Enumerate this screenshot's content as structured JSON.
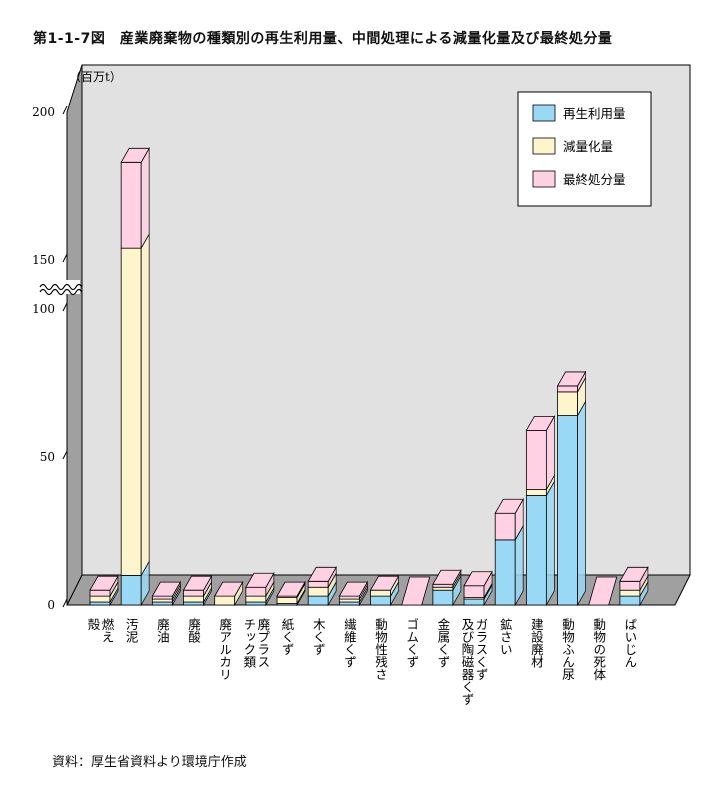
{
  "title": "第1-1-7図　産業廃棄物の種類別の再生利用量、中間処理による減量化量及び最終処分量",
  "source": "資料：厚生省資料より環境庁作成",
  "colors": {
    "recycle": "#99d9f5",
    "reduce": "#fff5cc",
    "final": "#ffd1e3",
    "background": "#e1e1e1",
    "wall_side": "#a0a0a0"
  },
  "chart_data": {
    "type": "bar",
    "stacked": true,
    "unit": "（百万t）",
    "ylim": [
      0,
      200
    ],
    "yticks": [
      0,
      50,
      100,
      150,
      200
    ],
    "axis_break": {
      "from": 100,
      "to": 150
    },
    "legend": {
      "position": "top-right"
    },
    "grid": false,
    "categories": [
      "燃え殻",
      "汚泥",
      "廃油",
      "廃酸",
      "廃アルカリ",
      "廃プラスチック類",
      "紙くず",
      "木くず",
      "繊維くず",
      "動物性残さ",
      "ゴムくず",
      "金属くず",
      "ガラスくず及び陶磁器くず",
      "鉱さい",
      "建設廃材",
      "動物ふん尿",
      "動物の死体",
      "ばいじん"
    ],
    "labels": [
      [
        "燃え",
        "殻"
      ],
      [
        "汚泥"
      ],
      [
        "廃油"
      ],
      [
        "廃酸"
      ],
      [
        "廃アルカリ"
      ],
      [
        "廃プラス",
        "チック類"
      ],
      [
        "紙くず"
      ],
      [
        "木くず"
      ],
      [
        "繊維くず"
      ],
      [
        "動物性残さ"
      ],
      [
        "ゴムくず"
      ],
      [
        "金属くず"
      ],
      [
        "ガラスくず",
        "及び陶磁器くず"
      ],
      [
        "鉱さい"
      ],
      [
        "建設廃材"
      ],
      [
        "動物ふん尿"
      ],
      [
        "動物の死体"
      ],
      [
        "ばいじん"
      ]
    ],
    "series": [
      {
        "name": "再生利用量",
        "values": [
          1,
          10,
          1,
          1,
          0,
          1,
          0.5,
          3,
          1,
          3,
          0,
          5,
          2,
          22,
          37,
          64,
          0,
          3
        ]
      },
      {
        "name": "減量化量",
        "values": [
          2,
          144,
          1,
          2,
          3,
          2,
          2,
          3,
          1,
          2,
          0,
          1,
          0.5,
          0,
          2,
          8,
          0,
          2
        ]
      },
      {
        "name": "最終処分量",
        "values": [
          2,
          29,
          1,
          2,
          0,
          3,
          0.5,
          2,
          1,
          0,
          0,
          1,
          4,
          9,
          20,
          2,
          0,
          3
        ]
      }
    ]
  }
}
